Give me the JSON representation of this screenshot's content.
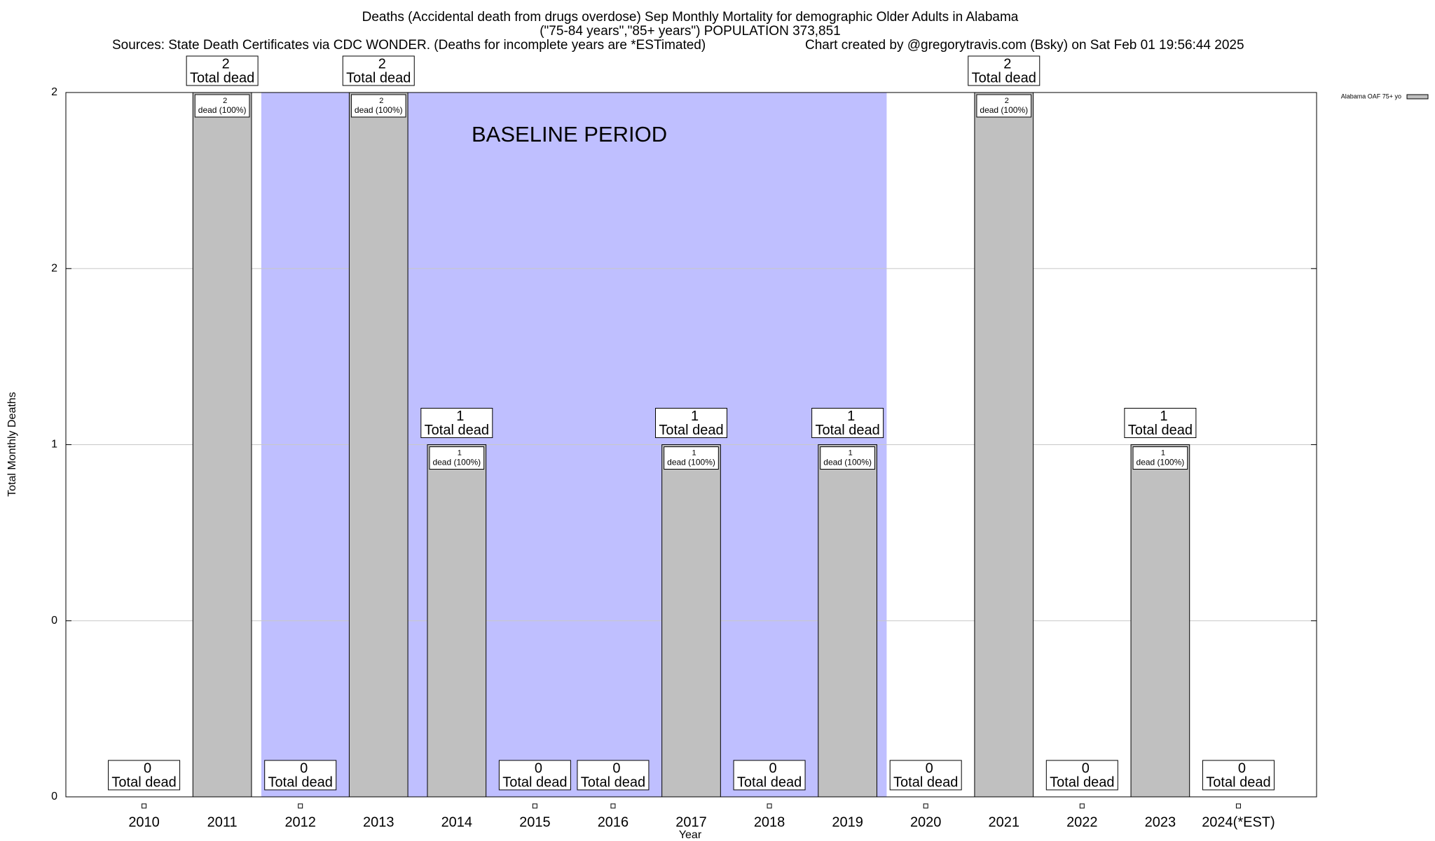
{
  "chart_data": {
    "type": "bar",
    "title": "Deaths (Accidental death from drugs overdose) Sep Monthly Mortality for demographic Older Adults in Alabama",
    "subtitle": "(\"75-84 years\",\"85+ years\") POPULATION 373,851",
    "source": "Sources: State Death Certificates via CDC WONDER. (Deaths for incomplete years are *ESTimated)",
    "credit": "Chart created by @gregorytravis.com (Bsky) on Sat Feb 01 19:56:44 2025",
    "x_label": "Year",
    "y_label": "Total Monthly Deaths",
    "categories": [
      "2010",
      "2011",
      "2012",
      "2013",
      "2014",
      "2015",
      "2016",
      "2017",
      "2018",
      "2019",
      "2020",
      "2021",
      "2022",
      "2023",
      "2024(*EST)"
    ],
    "series": [
      {
        "name": "Alabama OAF 75+ yo",
        "color": "#c0c0c0",
        "values": [
          0,
          2,
          0,
          2,
          1,
          0,
          0,
          1,
          0,
          1,
          0,
          2,
          0,
          1,
          0
        ]
      }
    ],
    "total_label": "Total dead",
    "share_label": "dead (100%)",
    "ylim": [
      0,
      2
    ],
    "yticks": [
      0,
      {
        "value": 0.5,
        "label": "0"
      },
      1,
      {
        "value": 1.5,
        "label": "2"
      },
      2
    ],
    "grid": true,
    "legend": "upper right",
    "baseline_period": {
      "label": "BASELINE PERIOD",
      "start": "2012",
      "end": "2019",
      "color": "#bfbfff"
    }
  }
}
